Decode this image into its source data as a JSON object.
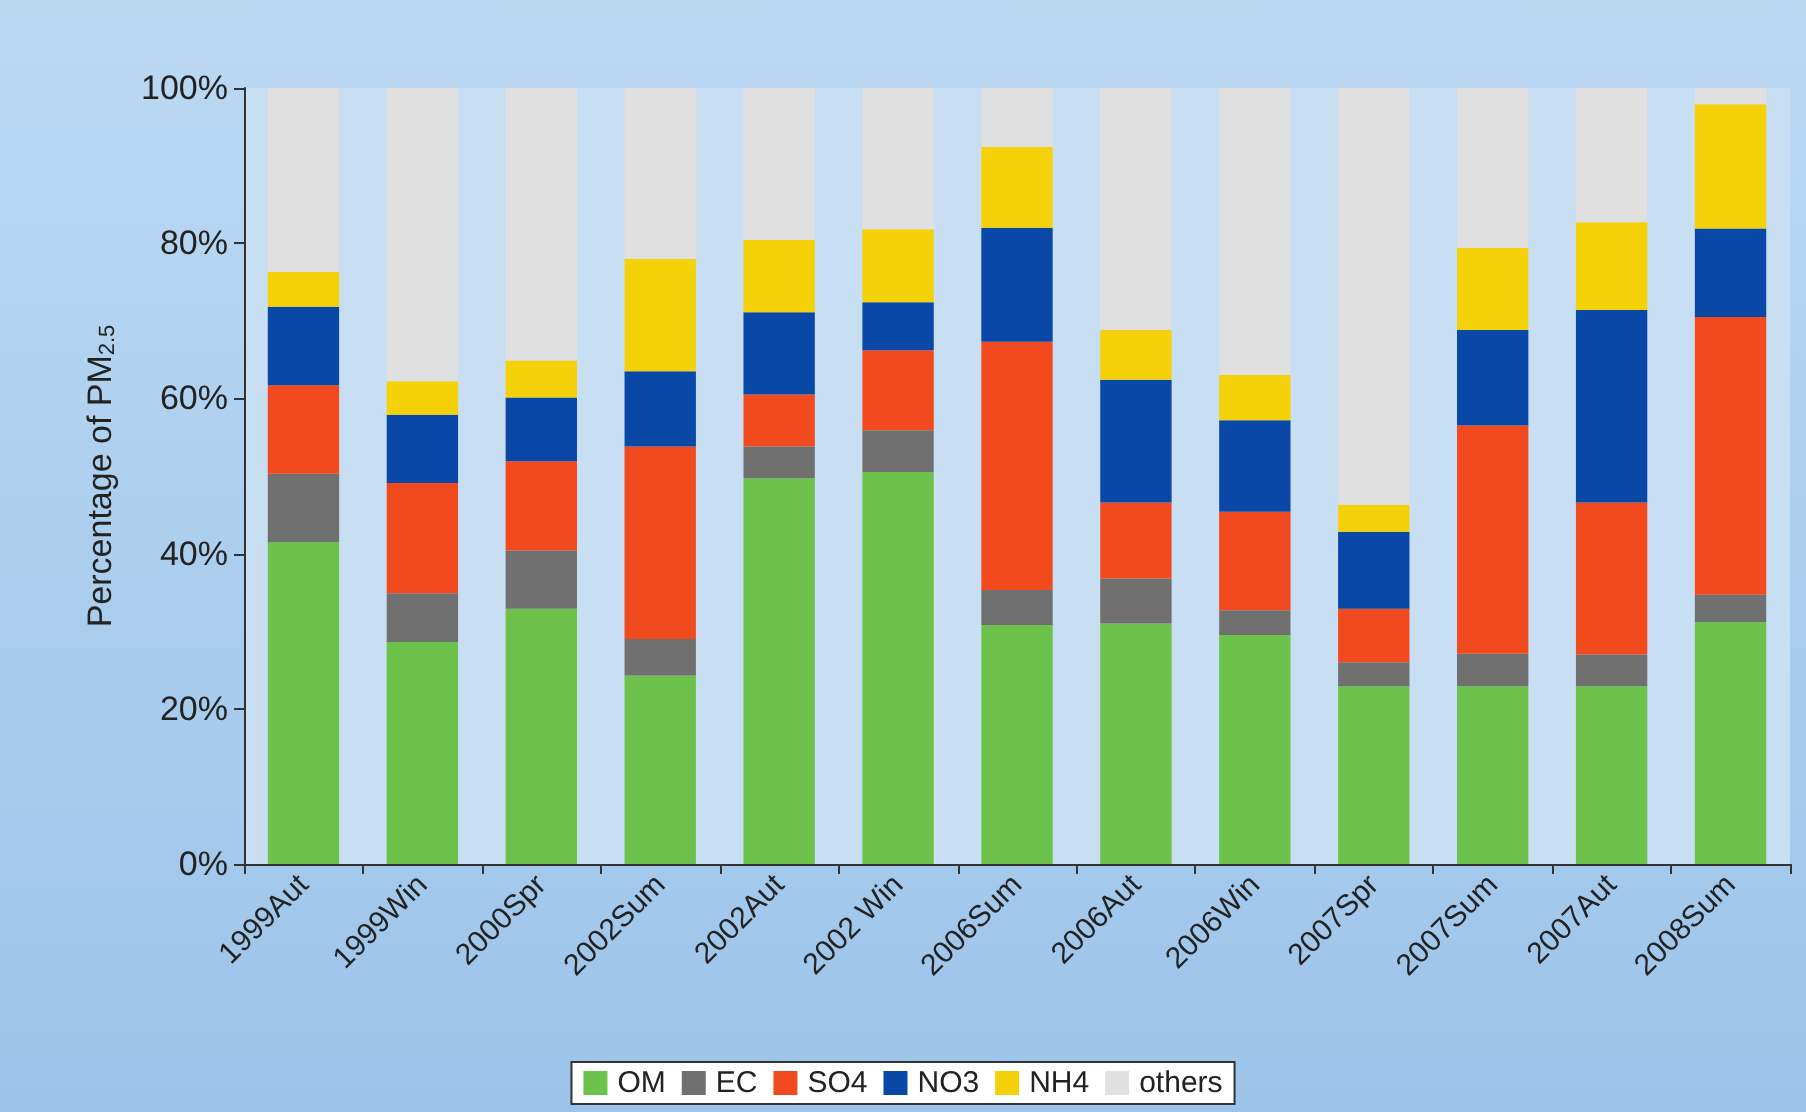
{
  "chart_data": {
    "type": "bar",
    "stacked": true,
    "ylabel": "Percentage of PM$_{2.5}$",
    "categories": [
      "1999Aut",
      "1999Win",
      "2000Spr",
      "2002Sum",
      "2002Aut",
      "2002 Win",
      "2006Sum",
      "2006Aut",
      "2006Win",
      "2007Spr",
      "2007Sum",
      "2007Aut",
      "2008Sum"
    ],
    "series": [
      {
        "name": "OM",
        "color": "#6cc24a",
        "values": [
          41.5,
          28.6,
          32.9,
          24.3,
          49.7,
          50.5,
          30.8,
          31.0,
          29.5,
          22.9,
          22.9,
          22.9,
          31.2
        ]
      },
      {
        "name": "EC",
        "color": "#707070",
        "values": [
          8.8,
          6.3,
          7.5,
          4.7,
          4.1,
          5.4,
          4.5,
          5.8,
          3.2,
          3.1,
          4.2,
          4.1,
          3.5
        ]
      },
      {
        "name": "SO4",
        "color": "#f04a1e",
        "values": [
          11.4,
          14.2,
          11.5,
          24.8,
          6.7,
          10.3,
          32.0,
          9.8,
          12.7,
          6.9,
          29.4,
          19.6,
          35.8
        ]
      },
      {
        "name": "NO3",
        "color": "#0a48a8",
        "values": [
          10.1,
          8.8,
          8.2,
          9.7,
          10.6,
          6.2,
          14.7,
          15.8,
          11.8,
          9.9,
          12.3,
          24.8,
          11.4
        ]
      },
      {
        "name": "NH4",
        "color": "#f5d10a",
        "values": [
          4.5,
          4.3,
          4.8,
          14.5,
          9.3,
          9.4,
          10.4,
          6.4,
          5.8,
          3.5,
          10.6,
          11.3,
          16.0
        ]
      },
      {
        "name": "others",
        "color": "#e0e0e0",
        "values": [
          23.7,
          37.8,
          35.1,
          22.0,
          19.6,
          18.2,
          7.6,
          31.2,
          37.0,
          53.7,
          20.6,
          17.3,
          2.1
        ]
      }
    ],
    "ylim": [
      0,
      100
    ],
    "yticks": [
      {
        "value": 0,
        "label": "0%"
      },
      {
        "value": 20,
        "label": "20%"
      },
      {
        "value": 40,
        "label": "40%"
      },
      {
        "value": 60,
        "label": "60%"
      },
      {
        "value": 80,
        "label": "80%"
      },
      {
        "value": 100,
        "label": "100%"
      }
    ],
    "grid": false,
    "legend": "bottom"
  }
}
